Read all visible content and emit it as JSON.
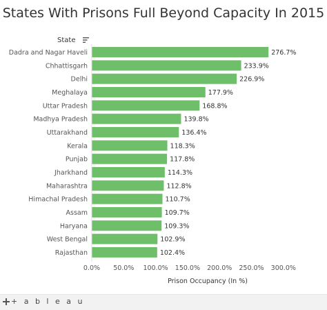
{
  "title": "States With Prisons Full Beyond Capacity In 2015",
  "state_header": "State",
  "icons": {
    "sort": "sort-descending-icon",
    "logo": "tableau-logo-icon"
  },
  "footer": {
    "brand": "+ a b l e a u"
  },
  "colors": {
    "bar": "#6fbf6a",
    "text": "#333333",
    "axis_text": "#555555",
    "grid": "#dddddd"
  },
  "chart_data": {
    "type": "bar",
    "orientation": "horizontal",
    "title": "States With Prisons Full Beyond Capacity In 2015",
    "xlabel": "Prison Occupancy (In %)",
    "ylabel": "State",
    "xlim": [
      0,
      300
    ],
    "x_ticks": [
      0,
      50,
      100,
      150,
      200,
      250,
      300
    ],
    "x_tick_labels": [
      "0.0%",
      "50.0%",
      "100.0%",
      "150.0%",
      "200.0%",
      "250.0%",
      "300.0%"
    ],
    "categories": [
      "Dadra and Nagar Haveli",
      "Chhattisgarh",
      "Delhi",
      "Meghalaya",
      "Uttar Pradesh",
      "Madhya Pradesh",
      "Uttarakhand",
      "Kerala",
      "Punjab",
      "Jharkhand",
      "Maharashtra",
      "Himachal Pradesh",
      "Assam",
      "Haryana",
      "West Bengal",
      "Rajasthan"
    ],
    "values": [
      276.7,
      233.9,
      226.9,
      177.9,
      168.8,
      139.8,
      136.4,
      118.3,
      117.8,
      114.3,
      112.8,
      110.7,
      109.7,
      109.3,
      102.9,
      102.4
    ],
    "value_labels": [
      "276.7%",
      "233.9%",
      "226.9%",
      "177.9%",
      "168.8%",
      "139.8%",
      "136.4%",
      "118.3%",
      "117.8%",
      "114.3%",
      "112.8%",
      "110.7%",
      "109.7%",
      "109.3%",
      "102.9%",
      "102.4%"
    ],
    "grid": false,
    "legend": "none"
  }
}
